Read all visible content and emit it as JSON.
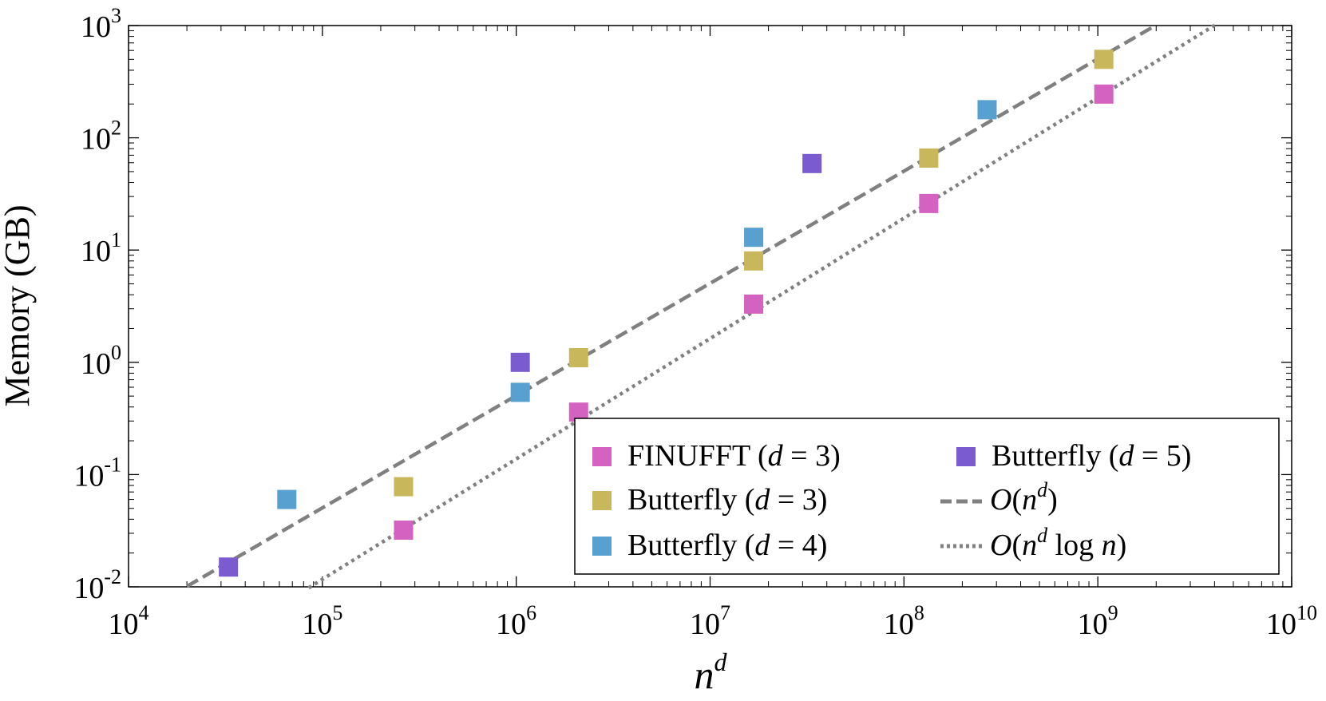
{
  "chart_data": {
    "type": "scatter",
    "xscale": "log",
    "yscale": "log",
    "xlim": [
      10000,
      10000000000
    ],
    "ylim": [
      0.01,
      1000
    ],
    "xlabel": "n^d",
    "ylabel": "Memory (GB)",
    "xticks": [
      {
        "value": 10000,
        "base": "10",
        "exp": "4"
      },
      {
        "value": 100000,
        "base": "10",
        "exp": "5"
      },
      {
        "value": 1000000,
        "base": "10",
        "exp": "6"
      },
      {
        "value": 10000000,
        "base": "10",
        "exp": "7"
      },
      {
        "value": 100000000,
        "base": "10",
        "exp": "8"
      },
      {
        "value": 1000000000,
        "base": "10",
        "exp": "9"
      },
      {
        "value": 10000000000,
        "base": "10",
        "exp": "10"
      }
    ],
    "yticks": [
      {
        "value": 0.01,
        "base": "10",
        "exp": "-2"
      },
      {
        "value": 0.1,
        "base": "10",
        "exp": "-1"
      },
      {
        "value": 1,
        "base": "10",
        "exp": "0"
      },
      {
        "value": 10,
        "base": "10",
        "exp": "1"
      },
      {
        "value": 100,
        "base": "10",
        "exp": "2"
      },
      {
        "value": 1000,
        "base": "10",
        "exp": "3"
      }
    ],
    "series": [
      {
        "name": "FINUFFT (d = 3)",
        "label_prefix": "FINUFFT (",
        "color": "#d462c0",
        "x": [
          262144,
          2097152,
          16777216,
          134217728,
          1073741824
        ],
        "y": [
          0.032,
          0.36,
          3.3,
          26,
          245
        ]
      },
      {
        "name": "Butterfly (d = 3)",
        "label_prefix": "Butterfly (",
        "color": "#c9b75c",
        "x": [
          262144,
          2097152,
          16777216,
          134217728,
          1073741824
        ],
        "y": [
          0.078,
          1.1,
          8.0,
          66,
          500
        ]
      },
      {
        "name": "Butterfly (d = 4)",
        "label_prefix": "Butterfly (",
        "color": "#58a0d0",
        "x": [
          65536,
          1048576,
          16777216,
          268435456
        ],
        "y": [
          0.06,
          0.54,
          13,
          178
        ]
      },
      {
        "name": "Butterfly (d = 5)",
        "label_prefix": "Butterfly (",
        "color": "#7b5cd0",
        "x": [
          32768,
          1048576,
          33554432
        ],
        "y": [
          0.015,
          1.0,
          59
        ]
      }
    ],
    "reference_lines": [
      {
        "name": "O(n^d)",
        "style": "dashed",
        "color": "#808080",
        "x": [
          20000,
          2000000000
        ],
        "y": [
          0.0101,
          1010
        ]
      },
      {
        "name": "O(n^d log n)",
        "style": "dotted",
        "color": "#808080",
        "x": [
          85000,
          4000000000
        ],
        "y": [
          0.0098,
          1005
        ]
      }
    ],
    "legend": {
      "position": "bottom-right",
      "d_symbol": "d",
      "eq": " = ",
      "d_values": [
        "3",
        "3",
        "4",
        "5"
      ],
      "close_paren": ")",
      "line_labels": [
        {
          "O": "O",
          "open": "(",
          "n": "n",
          "sup": "d",
          "rest": "",
          "close": ")"
        },
        {
          "O": "O",
          "open": "(",
          "n": "n",
          "sup": "d",
          "rest": " log ",
          "rest_n": "n",
          "close": ")"
        }
      ]
    }
  }
}
